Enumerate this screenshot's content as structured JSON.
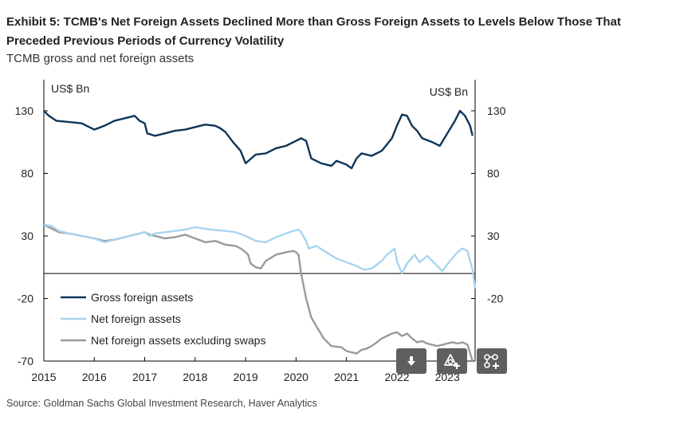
{
  "title": "Exhibit 5: TCMB's Net Foreign Assets Declined More than Gross Foreign Assets to Levels Below Those That Preceded Previous Periods of Currency Volatility",
  "subtitle": "TCMB gross and net foreign assets",
  "source": "Source: Goldman Sachs Global Investment Research, Haver Analytics",
  "toolbar": {
    "download_icon": "download-icon",
    "add_to_favorites_icon": "add-bookmark-icon",
    "share_icon": "share-icon"
  },
  "chart_data": {
    "type": "line",
    "y_unit_left": "US$ Bn",
    "y_unit_right": "US$ Bn",
    "x_ticks": [
      "2015",
      "2016",
      "2017",
      "2018",
      "2019",
      "2020",
      "2021",
      "2022",
      "2023"
    ],
    "y_ticks": [
      "130",
      "80",
      "30",
      "-20",
      "-70"
    ],
    "ylim": [
      -70,
      145
    ],
    "xlim": [
      2015.0,
      2023.55
    ],
    "zero_line": true,
    "legend_placement": "lower-left",
    "series": [
      {
        "name": "Gross foreign assets",
        "color": "#0d3558",
        "x": [
          2015.0,
          2015.1,
          2015.25,
          2015.5,
          2015.75,
          2015.9,
          2016.0,
          2016.2,
          2016.4,
          2016.6,
          2016.8,
          2016.9,
          2017.0,
          2017.05,
          2017.2,
          2017.4,
          2017.6,
          2017.8,
          2018.0,
          2018.2,
          2018.4,
          2018.5,
          2018.6,
          2018.75,
          2018.9,
          2019.0,
          2019.2,
          2019.4,
          2019.6,
          2019.8,
          2020.0,
          2020.1,
          2020.2,
          2020.3,
          2020.5,
          2020.7,
          2020.8,
          2021.0,
          2021.1,
          2021.2,
          2021.3,
          2021.5,
          2021.7,
          2021.9,
          2022.0,
          2022.1,
          2022.2,
          2022.3,
          2022.4,
          2022.5,
          2022.7,
          2022.85,
          2023.0,
          2023.15,
          2023.25,
          2023.35,
          2023.45,
          2023.5
        ],
        "values": [
          130,
          126,
          122,
          121,
          120,
          117,
          115,
          118,
          122,
          124,
          126,
          122,
          120,
          112,
          110,
          112,
          114,
          115,
          117,
          119,
          118,
          116,
          113,
          105,
          98,
          88,
          95,
          96,
          100,
          102,
          106,
          108,
          106,
          92,
          88,
          86,
          90,
          87,
          84,
          92,
          96,
          94,
          98,
          108,
          118,
          127,
          126,
          118,
          114,
          108,
          105,
          102,
          112,
          122,
          130,
          126,
          118,
          110
        ]
      },
      {
        "name": "Net foreign assets",
        "color": "#a8d4f0",
        "x": [
          2015.0,
          2015.15,
          2015.3,
          2015.5,
          2015.75,
          2016.0,
          2016.2,
          2016.4,
          2016.6,
          2016.8,
          2017.0,
          2017.1,
          2017.2,
          2017.4,
          2017.6,
          2017.8,
          2018.0,
          2018.3,
          2018.6,
          2018.8,
          2019.0,
          2019.2,
          2019.4,
          2019.6,
          2019.8,
          2019.95,
          2020.05,
          2020.1,
          2020.2,
          2020.25,
          2020.4,
          2020.6,
          2020.8,
          2021.0,
          2021.2,
          2021.35,
          2021.5,
          2021.7,
          2021.8,
          2021.9,
          2021.95,
          2022.0,
          2022.1,
          2022.2,
          2022.35,
          2022.45,
          2022.6,
          2022.75,
          2022.9,
          2023.05,
          2023.2,
          2023.3,
          2023.4,
          2023.45,
          2023.5,
          2023.55
        ],
        "values": [
          39,
          38,
          34,
          32,
          30,
          28,
          25,
          27,
          29,
          31,
          33,
          30,
          32,
          33,
          34,
          35,
          37,
          35,
          34,
          33,
          30,
          26,
          25,
          29,
          32,
          34,
          35,
          33,
          26,
          20,
          22,
          17,
          12,
          9,
          6,
          3,
          4,
          10,
          15,
          18,
          20,
          10,
          0,
          8,
          15,
          9,
          14,
          8,
          2,
          10,
          17,
          20,
          18,
          10,
          3,
          -12
        ]
      },
      {
        "name": "Net foreign assets excluding swaps",
        "color": "#9a9a9a",
        "x": [
          2015.0,
          2015.15,
          2015.3,
          2015.5,
          2015.75,
          2016.0,
          2016.2,
          2016.4,
          2016.6,
          2016.8,
          2017.0,
          2017.1,
          2017.2,
          2017.4,
          2017.6,
          2017.8,
          2018.0,
          2018.2,
          2018.4,
          2018.6,
          2018.8,
          2018.9,
          2019.0,
          2019.05,
          2019.1,
          2019.2,
          2019.3,
          2019.4,
          2019.6,
          2019.8,
          2019.95,
          2020.0,
          2020.05,
          2020.1,
          2020.2,
          2020.3,
          2020.4,
          2020.55,
          2020.7,
          2020.9,
          2021.0,
          2021.1,
          2021.2,
          2021.3,
          2021.4,
          2021.5,
          2021.6,
          2021.7,
          2021.8,
          2021.9,
          2022.0,
          2022.1,
          2022.2,
          2022.3,
          2022.4,
          2022.5,
          2022.6,
          2022.7,
          2022.8,
          2022.9,
          2023.0,
          2023.1,
          2023.2,
          2023.3,
          2023.4,
          2023.5
        ],
        "values": [
          39,
          36,
          33,
          32,
          30,
          28,
          26,
          27,
          29,
          31,
          33,
          31,
          30,
          28,
          29,
          31,
          28,
          25,
          26,
          23,
          22,
          20,
          17,
          15,
          8,
          5,
          4,
          10,
          15,
          17,
          18,
          17,
          15,
          0,
          -20,
          -35,
          -42,
          -52,
          -58,
          -59,
          -62,
          -63,
          -64,
          -61,
          -60,
          -58,
          -55,
          -52,
          -50,
          -48,
          -47,
          -50,
          -48,
          -52,
          -55,
          -54,
          -56,
          -57,
          -58,
          -57,
          -56,
          -55,
          -56,
          -55,
          -57,
          -70
        ]
      }
    ]
  }
}
